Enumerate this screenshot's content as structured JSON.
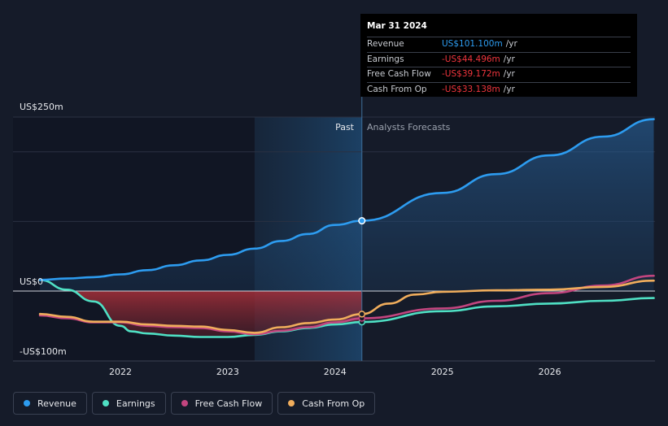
{
  "chart_data": {
    "type": "line",
    "title": "",
    "y_labels": [
      "US$250m",
      "US$0",
      "-US$100m"
    ],
    "x_ticks": [
      "2022",
      "2023",
      "2024",
      "2025",
      "2026"
    ],
    "x_range": [
      2021.25,
      2026.97
    ],
    "ylim": [
      -100,
      250
    ],
    "regions": {
      "past_label": "Past",
      "forecast_label": "Analysts Forecasts",
      "past_start": 2023.25,
      "divider": 2024.25
    },
    "series": [
      {
        "name": "Revenue",
        "color": "#2d9cf0",
        "x": [
          2021.25,
          2021.5,
          2021.75,
          2022.0,
          2022.25,
          2022.5,
          2022.75,
          2023.0,
          2023.25,
          2023.5,
          2023.75,
          2024.0,
          2024.25,
          2025.0,
          2025.5,
          2026.0,
          2026.5,
          2026.97
        ],
        "values": [
          16,
          18,
          20,
          24,
          30,
          37,
          44,
          52,
          61,
          72,
          82,
          95,
          101,
          141,
          168,
          195,
          222,
          247
        ],
        "marker_at": 2024.25
      },
      {
        "name": "Earnings",
        "color": "#4fe0c4",
        "x": [
          2021.25,
          2021.5,
          2021.75,
          2022.0,
          2022.1,
          2022.25,
          2022.5,
          2022.75,
          2023.0,
          2023.25,
          2023.5,
          2023.75,
          2024.0,
          2024.25,
          2025.0,
          2025.5,
          2026.0,
          2026.5,
          2026.97
        ],
        "values": [
          16,
          2,
          -15,
          -50,
          -58,
          -61,
          -64,
          -66,
          -66,
          -63,
          -58,
          -53,
          -48,
          -44.5,
          -29,
          -22,
          -18,
          -14,
          -10
        ]
      },
      {
        "name": "Free Cash Flow",
        "color": "#c2457f",
        "x": [
          2021.25,
          2021.5,
          2021.75,
          2022.0,
          2022.25,
          2022.5,
          2022.75,
          2023.0,
          2023.25,
          2023.5,
          2023.75,
          2024.0,
          2024.25,
          2025.0,
          2025.5,
          2026.0,
          2026.5,
          2026.97
        ],
        "values": [
          -35,
          -39,
          -45,
          -45,
          -50,
          -52,
          -53,
          -58,
          -62,
          -57,
          -52,
          -45,
          -39.2,
          -25,
          -14,
          -3,
          8,
          22
        ]
      },
      {
        "name": "Cash From Op",
        "color": "#f0ad5c",
        "x": [
          2021.25,
          2021.5,
          2021.75,
          2022.0,
          2022.25,
          2022.5,
          2022.75,
          2023.0,
          2023.25,
          2023.5,
          2023.75,
          2024.0,
          2024.25,
          2024.5,
          2024.75,
          2025.0,
          2025.5,
          2026.0,
          2026.5,
          2026.97
        ],
        "values": [
          -33,
          -37,
          -44,
          -44,
          -48,
          -50,
          -51,
          -56,
          -60,
          -52,
          -46,
          -41,
          -33.1,
          -18,
          -5,
          -1,
          1,
          2,
          6,
          15
        ]
      }
    ]
  },
  "tooltip": {
    "date": "Mar 31 2024",
    "rows": [
      {
        "label": "Revenue",
        "value": "US$101.100m",
        "unit": "/yr"
      },
      {
        "label": "Earnings",
        "value": "-US$44.496m",
        "unit": "/yr"
      },
      {
        "label": "Free Cash Flow",
        "value": "-US$39.172m",
        "unit": "/yr"
      },
      {
        "label": "Cash From Op",
        "value": "-US$33.138m",
        "unit": "/yr"
      }
    ]
  },
  "legend": [
    {
      "label": "Revenue",
      "color": "#2d9cf0"
    },
    {
      "label": "Earnings",
      "color": "#4fe0c4"
    },
    {
      "label": "Free Cash Flow",
      "color": "#c2457f"
    },
    {
      "label": "Cash From Op",
      "color": "#f0ad5c"
    }
  ]
}
